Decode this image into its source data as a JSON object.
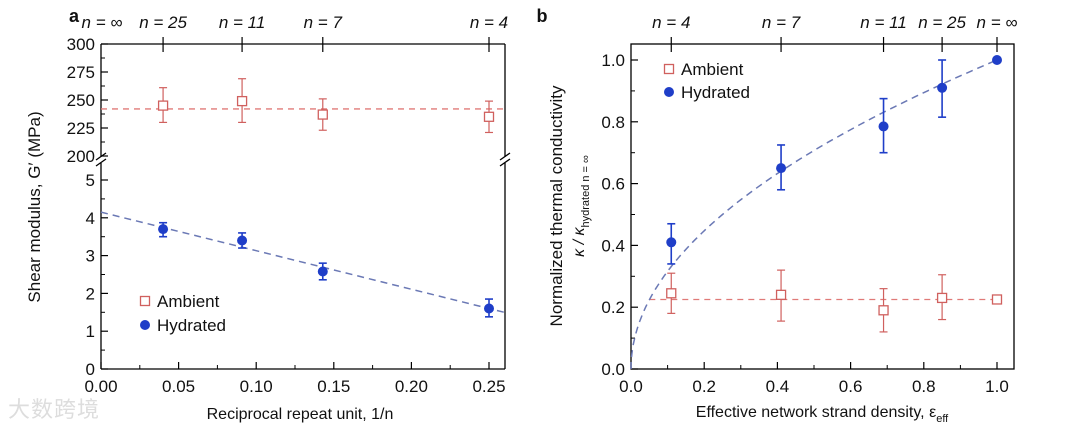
{
  "colors": {
    "ambient": "#d0605e",
    "hydrated": "#1f3ec8",
    "fit_hydrated": "#6b79b5",
    "fit_ambient": "#e07a78"
  },
  "watermark": "大数跨境",
  "chart_data": [
    {
      "panel_label": "a",
      "type": "scatter",
      "xlabel": "Reciprocal repeat unit, 1/n",
      "ylabel": "Shear modulus, G′ (MPa)",
      "xlim": [
        0,
        0.26
      ],
      "broken_y": true,
      "ylim_lower": [
        0,
        5.5
      ],
      "ylim_upper": [
        200,
        300
      ],
      "xticks": [
        "0.00",
        "0.05",
        "0.10",
        "0.15",
        "0.20",
        "0.25"
      ],
      "yticks_lower": [
        "0",
        "1",
        "2",
        "3",
        "4",
        "5"
      ],
      "yticks_upper": [
        "200",
        "225",
        "250",
        "275",
        "300"
      ],
      "top_axis": [
        {
          "label": "n = ∞",
          "x": 0
        },
        {
          "label": "n = 25",
          "x": 0.04
        },
        {
          "label": "n = 11",
          "x": 0.0909
        },
        {
          "label": "n = 7",
          "x": 0.1429
        },
        {
          "label": "n = 4",
          "x": 0.25
        }
      ],
      "legend": {
        "position": "bottom-left",
        "entries": [
          "Ambient",
          "Hydrated"
        ]
      },
      "series": [
        {
          "name": "Ambient",
          "marker": "open-square",
          "x": [
            0.04,
            0.0909,
            0.1429,
            0.25
          ],
          "y": [
            245,
            249,
            237,
            235
          ],
          "err_low": [
            230,
            230,
            223,
            221
          ],
          "err_high": [
            261,
            269,
            251,
            249
          ],
          "fit": {
            "type": "constant",
            "value": 242
          }
        },
        {
          "name": "Hydrated",
          "marker": "filled-circle",
          "x": [
            0.04,
            0.0909,
            0.1429,
            0.25
          ],
          "y": [
            3.7,
            3.4,
            2.58,
            1.6
          ],
          "err_low": [
            3.5,
            3.2,
            2.36,
            1.38
          ],
          "err_high": [
            3.87,
            3.6,
            2.8,
            1.85
          ],
          "fit": {
            "type": "linear",
            "intercept": 4.15,
            "slope": -10.2
          }
        }
      ]
    },
    {
      "panel_label": "b",
      "type": "scatter",
      "xlabel": "Effective network strand density, ε",
      "xlabel_sub": "eff",
      "ylabel": "Normalized thermal conductivity",
      "ylabel2": "κ / κ",
      "ylabel2_sub": "hydrated n = ∞",
      "xlim": [
        0,
        1.05
      ],
      "ylim": [
        0,
        1.05
      ],
      "xticks": [
        "0.0",
        "0.2",
        "0.4",
        "0.6",
        "0.8",
        "1.0"
      ],
      "yticks": [
        "0.0",
        "0.2",
        "0.4",
        "0.6",
        "0.8",
        "1.0"
      ],
      "top_axis": [
        {
          "label": "n = 4",
          "x": 0.11
        },
        {
          "label": "n = 7",
          "x": 0.41
        },
        {
          "label": "n = 11",
          "x": 0.69
        },
        {
          "label": "n = 25",
          "x": 0.85
        },
        {
          "label": "n = ∞",
          "x": 1.0
        }
      ],
      "legend": {
        "position": "top-left",
        "entries": [
          "Ambient",
          "Hydrated"
        ]
      },
      "series": [
        {
          "name": "Ambient",
          "marker": "open-square",
          "x": [
            0.11,
            0.41,
            0.69,
            0.85,
            1.0
          ],
          "y": [
            0.245,
            0.24,
            0.19,
            0.23,
            0.225
          ],
          "err_low": [
            0.18,
            0.155,
            0.12,
            0.16,
            null
          ],
          "err_high": [
            0.31,
            0.32,
            0.26,
            0.305,
            null
          ],
          "fit": {
            "type": "constant",
            "value": 0.225,
            "from": 0.05,
            "to": 1.0
          }
        },
        {
          "name": "Hydrated",
          "marker": "filled-circle",
          "x": [
            0.11,
            0.41,
            0.69,
            0.85,
            1.0
          ],
          "y": [
            0.41,
            0.65,
            0.785,
            0.91,
            1.0
          ],
          "err_low": [
            0.34,
            0.58,
            0.7,
            0.815,
            null
          ],
          "err_high": [
            0.47,
            0.725,
            0.875,
            1.0,
            null
          ],
          "fit": {
            "type": "sqrt"
          }
        }
      ]
    }
  ]
}
